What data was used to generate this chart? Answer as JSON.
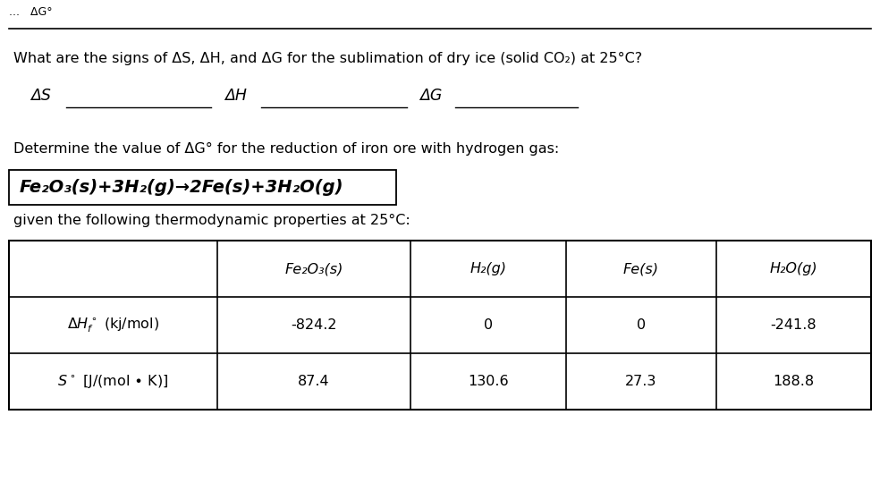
{
  "bg_color": "#ffffff",
  "question1_text": "What are the signs of ΔS, ΔH, and ΔG for the sublimation of dry ice (solid CO₂) at 25°C?",
  "label_AS": "ΔS",
  "label_AH": "ΔH",
  "label_AG": "ΔG",
  "question2_intro": "Determine the value of ΔG° for the reduction of iron ore with hydrogen gas:",
  "equation_italic": "Fe₂O₃(s)+3H₂(g)→2Fe(s)+3H₂O(g)",
  "given_text": "given the following thermodynamic properties at 25°C:",
  "table_headers": [
    "",
    "Fe₂O₃(s)",
    "H₂(g)",
    "Fe(s)",
    "H₂O(g)"
  ],
  "table_data": [
    [
      "-824.2",
      "0",
      "0",
      "-241.8"
    ],
    [
      "87.4",
      "130.6",
      "27.3",
      "188.8"
    ]
  ],
  "top_header_text": "...  ΔG°",
  "fig_width": 9.84,
  "fig_height": 5.49,
  "dpi": 100
}
